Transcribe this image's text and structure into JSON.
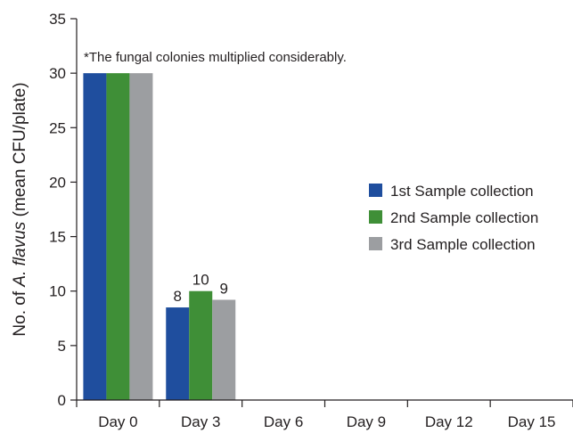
{
  "chart_data": {
    "type": "bar",
    "categories": [
      "Day 0",
      "Day 3",
      "Day 6",
      "Day 9",
      "Day 12",
      "Day 15"
    ],
    "series": [
      {
        "name": "1st  Sample collection",
        "color": "#1f4e9e",
        "values": [
          30,
          8.5,
          0,
          0,
          0,
          0
        ]
      },
      {
        "name": "2nd Sample collection",
        "color": "#3f8f37",
        "values": [
          30,
          10,
          0,
          0,
          0,
          0
        ]
      },
      {
        "name": "3rd  Sample collection",
        "color": "#9c9ea1",
        "values": [
          30,
          9.2,
          0,
          0,
          0,
          0
        ]
      }
    ],
    "data_labels": [
      {
        "category": "Day 3",
        "series": 0,
        "text": "8"
      },
      {
        "category": "Day 3",
        "series": 1,
        "text": "10"
      },
      {
        "category": "Day 3",
        "series": 2,
        "text": "9"
      }
    ],
    "yticks": [
      0,
      5,
      10,
      15,
      20,
      25,
      30,
      35
    ],
    "ylim": [
      0,
      35
    ],
    "ylabel_prefix": "No. of ",
    "ylabel_italic": "A. flavus",
    "ylabel_suffix": " (mean CFU/plate)",
    "xlabel": "",
    "annotation": "*The fungal colonies multiplied considerably.",
    "legend_position": "right",
    "grid": false
  }
}
